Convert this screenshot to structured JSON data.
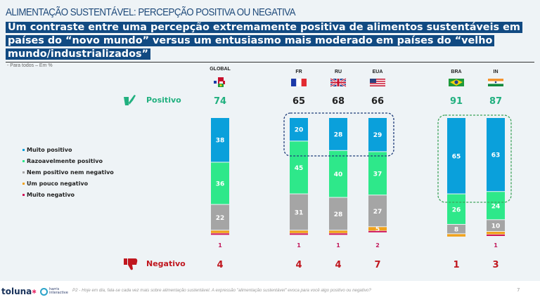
{
  "slide": {
    "title": "ALIMENTAÇÃO SUSTENTÁVEL: PERCEPÇÃO POSITIVA OU NEGATIVA",
    "subtitle": "Um contraste entre uma percepção extremamente positiva de alimentos sustentáveis em países do “novo mundo” versus um entusiasmo mais moderado em países do “velho mundo/industrializados”",
    "base_note": "- Para todos – Em %",
    "positive_label": "Positivo",
    "negative_label": "Negativo",
    "positive_icon": "thumbs-up-check-icon",
    "negative_icon": "thumbs-down-icon",
    "footer": {
      "brand": "toluna",
      "partner_line1": "harris",
      "partner_line2": "interactive",
      "footnote": "P2 - Hoje em dia, fala-se cada vez mais sobre alimentação sustentável. A expressão \"alimentação sustentável\" evoca para você algo positivo ou negativo?",
      "page_number": "7"
    }
  },
  "colors": {
    "muito_positivo": "#0aa0db",
    "razoavelmente_positivo": "#2ee88a",
    "nem": "#a5a5a5",
    "um_pouco_negativo": "#f0a21c",
    "muito_negativo": "#d0155a",
    "positive_text": "#21b07f",
    "negative_text": "#c0171f",
    "highlight_old_world": "#1f3d7a",
    "highlight_new_world": "#3da35a",
    "title_bar": "#114a82"
  },
  "chart_data": {
    "type": "bar",
    "stacked": true,
    "title": "ALIMENTAÇÃO SUSTENTÁVEL: PERCEPÇÃO POSITIVA OU NEGATIVA",
    "xlabel": "",
    "ylabel": "%",
    "ylim": [
      0,
      100
    ],
    "legend_position": "left",
    "categories": [
      "GLOBAL",
      "FR",
      "RU",
      "EUA",
      "BRA",
      "IN"
    ],
    "flags": [
      "global-flags-icon",
      "france-flag-icon",
      "uk-flag-icon",
      "usa-flag-icon",
      "brazil-flag-icon",
      "india-flag-icon"
    ],
    "series": [
      {
        "name": "Muito positivo",
        "values": [
          38,
          20,
          28,
          29,
          65,
          63
        ]
      },
      {
        "name": "Razoavelmente positivo",
        "values": [
          36,
          45,
          40,
          37,
          26,
          24
        ]
      },
      {
        "name": "Nem positivo nem negativo",
        "values": [
          22,
          31,
          28,
          27,
          8,
          10
        ]
      },
      {
        "name": "Um pouco negativo",
        "values": [
          3,
          3,
          3,
          5,
          1,
          2
        ]
      },
      {
        "name": "Muito negativo",
        "values": [
          1,
          1,
          1,
          2,
          0,
          1
        ]
      }
    ],
    "totals_positive": [
      74,
      65,
      68,
      66,
      91,
      87
    ],
    "totals_negative": [
      4,
      4,
      4,
      7,
      1,
      3
    ],
    "positive_total_highlight": [
      true,
      false,
      false,
      false,
      true,
      true
    ],
    "annotations": [
      {
        "type": "dashed-box",
        "around": "Muito positivo",
        "categories": [
          "FR",
          "RU",
          "EUA"
        ],
        "color": "navy"
      },
      {
        "type": "dashed-box",
        "around": "Muito positivo",
        "categories": [
          "BRA",
          "IN"
        ],
        "color": "green"
      }
    ]
  }
}
